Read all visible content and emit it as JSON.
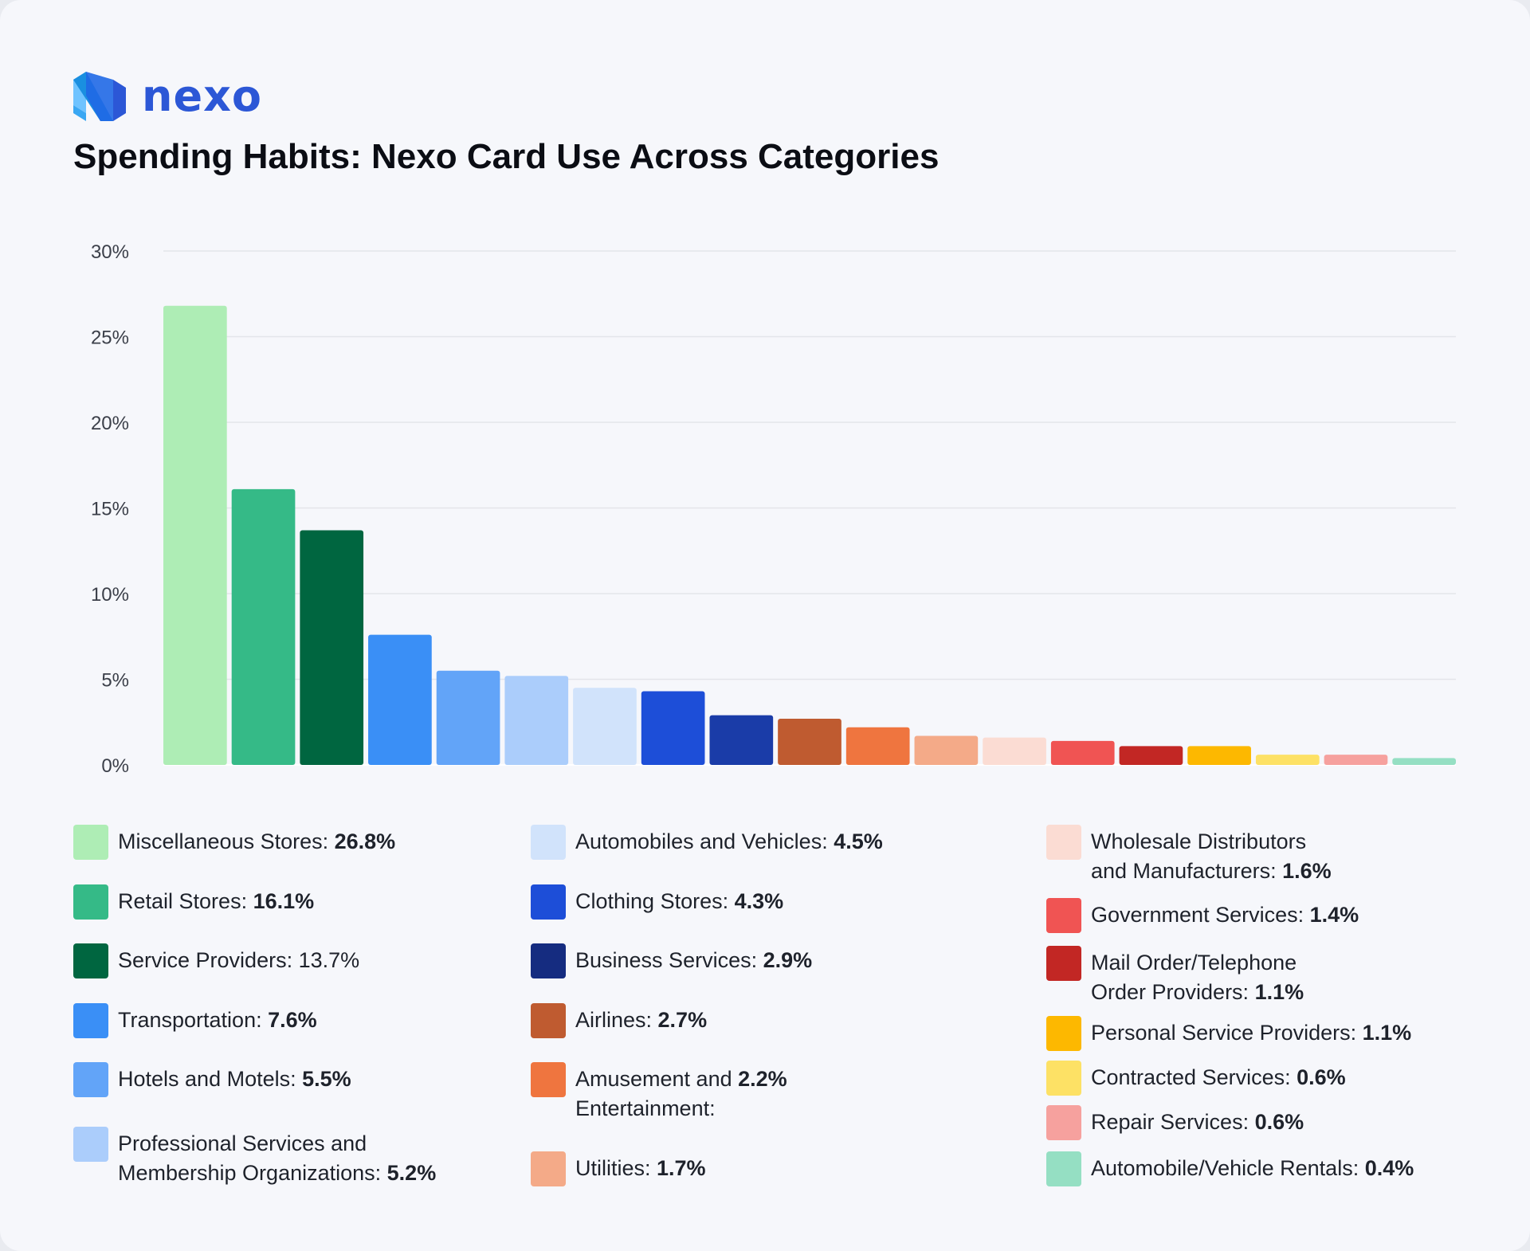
{
  "brand": {
    "name": "nexo",
    "colors": [
      "#1a8fe0",
      "#2c57d6",
      "#6fc3ff"
    ]
  },
  "title": "Spending Habits: Nexo Card Use Across Categories",
  "chart_data": {
    "type": "bar",
    "title": "Spending Habits: Nexo Card Use Across Categories",
    "ylim": [
      0,
      30
    ],
    "yticks": [
      "0%",
      "5%",
      "10%",
      "15%",
      "20%",
      "25%",
      "30%"
    ],
    "grid": true,
    "legend_position": "bottom",
    "categories": [
      "Miscellaneous Stores",
      "Retail Stores",
      "Service Providers",
      "Transportation",
      "Hotels and Motels",
      "Professional Services and Membership Organizations",
      "Automobiles and Vehicles",
      "Clothing Stores",
      "Business Services",
      "Airlines",
      "Amusement and Entertainment",
      "Utilities",
      "Wholesale Distributors and Manufacturers",
      "Government Services",
      "Mail Order/Telephone Order Providers",
      "Personal Service Providers",
      "Contracted Services",
      "Repair Services",
      "Automobile/Vehicle Rentals"
    ],
    "values": [
      26.8,
      16.1,
      13.7,
      7.6,
      5.5,
      5.2,
      4.5,
      4.3,
      2.9,
      2.7,
      2.2,
      1.7,
      1.6,
      1.4,
      1.1,
      1.1,
      0.6,
      0.6,
      0.4
    ],
    "colors": [
      "#aeedb5",
      "#35ba87",
      "#006640",
      "#3a8ff6",
      "#62a4f8",
      "#abcdfb",
      "#d1e3fb",
      "#1d4ed8",
      "#1a3ca8",
      "#bf5b30",
      "#ef753f",
      "#f4aa88",
      "#fbdcd3",
      "#f05453",
      "#c22724",
      "#fdb800",
      "#fde165",
      "#f6a19e",
      "#95dfc3"
    ]
  },
  "legend": {
    "columns": [
      [
        {
          "label": "Miscellaneous Stores: ",
          "value": "26.8%",
          "color": "#aeedb5"
        },
        {
          "label": "Retail Stores: ",
          "value": "16.1%",
          "color": "#35ba87"
        },
        {
          "label": "Service Providers: 13.7%",
          "value": "",
          "color": "#006640"
        },
        {
          "label": "Transportation: ",
          "value": "7.6%",
          "color": "#3a8ff6"
        },
        {
          "label": "Hotels and Motels: ",
          "value": "5.5%",
          "color": "#62a4f8"
        },
        {
          "label": "Professional Services and\nMembership Organizations: ",
          "value": "5.2%",
          "color": "#abcdfb"
        }
      ],
      [
        {
          "label": "Automobiles and Vehicles: ",
          "value": "4.5%",
          "color": "#d1e3fb"
        },
        {
          "label": "Clothing Stores: ",
          "value": "4.3%",
          "color": "#1d4ed8"
        },
        {
          "label": "Business Services: ",
          "value": "2.9%",
          "color": "#152c80"
        },
        {
          "label": "Airlines: ",
          "value": "2.7%",
          "color": "#bf5b30"
        },
        {
          "label": "Amusement and ",
          "value": "2.2%",
          "after": "\nEntertainment:",
          "color": "#ef753f"
        },
        {
          "label": "Utilities: ",
          "value": "1.7%",
          "color": "#f4aa88"
        }
      ],
      [
        {
          "label": "Wholesale Distributors\nand Manufacturers: ",
          "value": "1.6%",
          "color": "#fbdcd3"
        },
        {
          "label": "Government Services: ",
          "value": "1.4%",
          "color": "#f05453"
        },
        {
          "label": "Mail Order/Telephone\nOrder Providers: ",
          "value": "1.1%",
          "color": "#c22724"
        },
        {
          "label": "Personal Service Providers: ",
          "value": "1.1%",
          "color": "#fdb800"
        },
        {
          "label": "Contracted Services: ",
          "value": "0.6%",
          "color": "#fde165"
        },
        {
          "label": "Repair Services: ",
          "value": "0.6%",
          "color": "#f6a19e"
        },
        {
          "label": "Automobile/Vehicle Rentals: ",
          "value": "0.4%",
          "color": "#95dfc3"
        }
      ]
    ]
  }
}
